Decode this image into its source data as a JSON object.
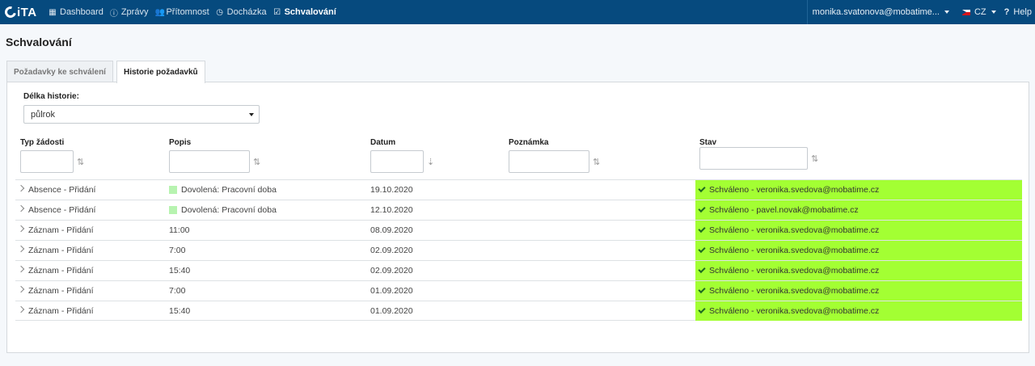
{
  "navbar": {
    "logo": "iTA",
    "items": [
      {
        "label": "Dashboard",
        "icon": "grid-icon"
      },
      {
        "label": "Zprávy",
        "icon": "info-icon"
      },
      {
        "label": "Přítomnost",
        "icon": "users-icon"
      },
      {
        "label": "Docházka",
        "icon": "clock-icon"
      },
      {
        "label": "Schvalování",
        "icon": "check-square-icon",
        "active": true
      }
    ],
    "user": "monika.svatonova@mobatime...",
    "lang": "CZ",
    "help": "Help"
  },
  "page": {
    "title": "Schvalování",
    "tabs": [
      {
        "label": "Požadavky ke schválení"
      },
      {
        "label": "Historie požadavků",
        "active": true
      }
    ],
    "history": {
      "label": "Délka historie:",
      "selected": "půlrok"
    },
    "columns": {
      "type": "Typ žádosti",
      "description": "Popis",
      "date": "Datum",
      "note": "Poznámka",
      "status": "Stav"
    },
    "rows": [
      {
        "type": "Absence - Přidání",
        "description": "Dovolená: Pracovní doba",
        "swatch": true,
        "date": "19.10.2020",
        "note": "",
        "status": "Schváleno - veronika.svedova@mobatime.cz"
      },
      {
        "type": "Absence - Přidání",
        "description": "Dovolená: Pracovní doba",
        "swatch": true,
        "date": "12.10.2020",
        "note": "",
        "status": "Schváleno - pavel.novak@mobatime.cz"
      },
      {
        "type": "Záznam - Přidání",
        "description": "11:00",
        "swatch": false,
        "date": "08.09.2020",
        "note": "",
        "status": "Schváleno - veronika.svedova@mobatime.cz"
      },
      {
        "type": "Záznam - Přidání",
        "description": "7:00",
        "swatch": false,
        "date": "02.09.2020",
        "note": "",
        "status": "Schváleno - veronika.svedova@mobatime.cz"
      },
      {
        "type": "Záznam - Přidání",
        "description": "15:40",
        "swatch": false,
        "date": "02.09.2020",
        "note": "",
        "status": "Schváleno - veronika.svedova@mobatime.cz"
      },
      {
        "type": "Záznam - Přidání",
        "description": "7:00",
        "swatch": false,
        "date": "01.09.2020",
        "note": "",
        "status": "Schváleno - veronika.svedova@mobatime.cz"
      },
      {
        "type": "Záznam - Přidání",
        "description": "15:40",
        "swatch": false,
        "date": "01.09.2020",
        "note": "",
        "status": "Schváleno - veronika.svedova@mobatime.cz"
      }
    ],
    "colors": {
      "navbar": "#064a7e",
      "status_approved": "#a3ff33",
      "swatch": "#b7f3b0"
    }
  }
}
